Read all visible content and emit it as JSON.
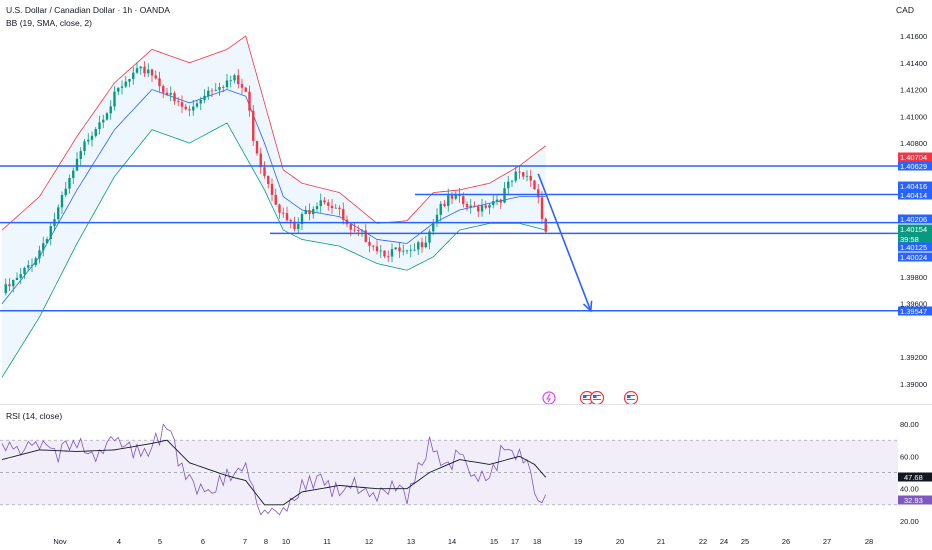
{
  "header": {
    "symbol_line": "U.S. Dollar / Canadian Dollar · 1h · OANDA",
    "bb_label": "BB (19, SMA, close, 2)",
    "currency": "CAD"
  },
  "rsi_panel": {
    "label": "RSI (14, close)"
  },
  "chart_data": [
    {
      "type": "candlestick",
      "title": "U.S. Dollar / Canadian Dollar · 1h · OANDA",
      "y_axis_ticks": [
        "1.41600",
        "1.41400",
        "1.41200",
        "1.41000",
        "1.40800",
        "1.39800",
        "1.39600",
        "1.39200",
        "1.39000"
      ],
      "x_axis_ticks": [
        "Nov",
        "4",
        "5",
        "6",
        "7",
        "8",
        "10",
        "11",
        "12",
        "13",
        "14",
        "15",
        "17",
        "18",
        "19",
        "20",
        "21",
        "22",
        "24",
        "25",
        "26",
        "27",
        "28"
      ],
      "ylim": [
        1.3885,
        1.4172
      ],
      "price_path": [
        [
          0,
          1.3968
        ],
        [
          5,
          1.398
        ],
        [
          10,
          1.4
        ],
        [
          15,
          1.403
        ],
        [
          19,
          1.4058
        ],
        [
          23,
          1.4085
        ],
        [
          27,
          1.4102
        ],
        [
          31,
          1.4118
        ],
        [
          35,
          1.413
        ],
        [
          39,
          1.4136
        ],
        [
          42,
          1.4125
        ],
        [
          46,
          1.411
        ],
        [
          50,
          1.4103
        ],
        [
          54,
          1.4118
        ],
        [
          58,
          1.4125
        ],
        [
          62,
          1.4127
        ],
        [
          65,
          1.4118
        ],
        [
          67,
          1.4085
        ],
        [
          69,
          1.4065
        ],
        [
          72,
          1.4045
        ],
        [
          75,
          1.4025
        ],
        [
          78,
          1.4015
        ],
        [
          81,
          1.4028
        ],
        [
          85,
          1.404
        ],
        [
          89,
          1.4032
        ],
        [
          93,
          1.4012
        ],
        [
          97,
          1.401
        ],
        [
          101,
          1.4
        ],
        [
          105,
          1.3998
        ],
        [
          109,
          1.3996
        ],
        [
          113,
          1.401
        ],
        [
          117,
          1.4035
        ],
        [
          121,
          1.4038
        ],
        [
          125,
          1.403
        ],
        [
          129,
          1.4035
        ],
        [
          133,
          1.404
        ],
        [
          137,
          1.4055
        ],
        [
          141,
          1.4053
        ],
        [
          143,
          1.404
        ],
        [
          145,
          1.4015
        ]
      ],
      "bollinger": {
        "period": 19,
        "upper": [
          [
            0,
            1.4015
          ],
          [
            10,
            1.404
          ],
          [
            20,
            1.4085
          ],
          [
            30,
            1.4125
          ],
          [
            40,
            1.415
          ],
          [
            50,
            1.414
          ],
          [
            60,
            1.415
          ],
          [
            65,
            1.416
          ],
          [
            70,
            1.411
          ],
          [
            75,
            1.406
          ],
          [
            80,
            1.405
          ],
          [
            90,
            1.4043
          ],
          [
            100,
            1.402
          ],
          [
            108,
            1.4022
          ],
          [
            115,
            1.4043
          ],
          [
            122,
            1.4045
          ],
          [
            130,
            1.405
          ],
          [
            138,
            1.4063
          ],
          [
            145,
            1.4078
          ]
        ],
        "middle": [
          [
            0,
            1.396
          ],
          [
            10,
            1.3995
          ],
          [
            20,
            1.4045
          ],
          [
            30,
            1.409
          ],
          [
            40,
            1.412
          ],
          [
            50,
            1.411
          ],
          [
            60,
            1.412
          ],
          [
            65,
            1.4115
          ],
          [
            70,
            1.408
          ],
          [
            75,
            1.404
          ],
          [
            80,
            1.403
          ],
          [
            90,
            1.4025
          ],
          [
            100,
            1.4008
          ],
          [
            108,
            1.4005
          ],
          [
            115,
            1.402
          ],
          [
            122,
            1.403
          ],
          [
            130,
            1.4035
          ],
          [
            138,
            1.404
          ],
          [
            145,
            1.404
          ]
        ],
        "lower": [
          [
            0,
            1.3905
          ],
          [
            10,
            1.395
          ],
          [
            20,
            1.4005
          ],
          [
            30,
            1.4055
          ],
          [
            40,
            1.409
          ],
          [
            50,
            1.408
          ],
          [
            60,
            1.4095
          ],
          [
            65,
            1.407
          ],
          [
            70,
            1.4045
          ],
          [
            75,
            1.4015
          ],
          [
            80,
            1.4008
          ],
          [
            90,
            1.4003
          ],
          [
            100,
            1.399
          ],
          [
            108,
            1.3985
          ],
          [
            115,
            1.3995
          ],
          [
            122,
            1.4015
          ],
          [
            130,
            1.402
          ],
          [
            138,
            1.402
          ],
          [
            145,
            1.4015
          ]
        ]
      },
      "horizontal_levels": [
        1.40629,
        1.40416,
        1.40414,
        1.40206,
        1.40125,
        1.39547
      ],
      "projection_arrow": {
        "from": [
          143,
          1.4057
        ],
        "to": [
          157,
          1.39547
        ]
      },
      "price_labels": [
        {
          "text": "1.40704",
          "color": "#f23645"
        },
        {
          "text": "1.40629",
          "color": "#2962ff"
        },
        {
          "text": "1.40416",
          "color": "#2962ff"
        },
        {
          "text": "1.40414",
          "color": "#2962ff"
        },
        {
          "text": "1.40206",
          "color": "#2962ff"
        },
        {
          "text": "1.40154",
          "color": "#089981",
          "sub": "39:58"
        },
        {
          "text": "1.40125",
          "color": "#2962ff"
        },
        {
          "text": "1.40024",
          "color": "#2962ff"
        },
        {
          "text": "1.39547",
          "color": "#2962ff"
        }
      ],
      "events": [
        "flash-icon",
        "us-flag-icon",
        "us-flag-icon",
        "us-flag-icon"
      ]
    },
    {
      "type": "line",
      "title": "RSI (14, close)",
      "y_axis_ticks": [
        "80.00",
        "60.00",
        "40.00",
        "20.00"
      ],
      "ylim": [
        15,
        88
      ],
      "band": [
        30,
        70
      ],
      "midline": 50,
      "rsi": [
        [
          0,
          68
        ],
        [
          5,
          63
        ],
        [
          10,
          70
        ],
        [
          15,
          62
        ],
        [
          20,
          68
        ],
        [
          25,
          60
        ],
        [
          30,
          70
        ],
        [
          35,
          62
        ],
        [
          40,
          66
        ],
        [
          44,
          78
        ],
        [
          46,
          65
        ],
        [
          50,
          45
        ],
        [
          55,
          38
        ],
        [
          60,
          48
        ],
        [
          65,
          55
        ],
        [
          68,
          30
        ],
        [
          70,
          24
        ],
        [
          75,
          28
        ],
        [
          80,
          40
        ],
        [
          85,
          45
        ],
        [
          90,
          38
        ],
        [
          95,
          42
        ],
        [
          100,
          35
        ],
        [
          105,
          40
        ],
        [
          108,
          35
        ],
        [
          110,
          48
        ],
        [
          114,
          68
        ],
        [
          118,
          52
        ],
        [
          122,
          62
        ],
        [
          126,
          45
        ],
        [
          130,
          48
        ],
        [
          134,
          65
        ],
        [
          138,
          60
        ],
        [
          141,
          48
        ],
        [
          143,
          30
        ],
        [
          145,
          33
        ]
      ],
      "rsi_ma": [
        [
          0,
          58
        ],
        [
          10,
          64
        ],
        [
          20,
          63
        ],
        [
          30,
          64
        ],
        [
          40,
          68
        ],
        [
          44,
          70
        ],
        [
          50,
          56
        ],
        [
          60,
          48
        ],
        [
          65,
          45
        ],
        [
          70,
          30
        ],
        [
          75,
          30
        ],
        [
          80,
          38
        ],
        [
          90,
          42
        ],
        [
          100,
          40
        ],
        [
          108,
          40
        ],
        [
          114,
          50
        ],
        [
          122,
          58
        ],
        [
          130,
          55
        ],
        [
          138,
          60
        ],
        [
          142,
          55
        ],
        [
          145,
          47
        ]
      ],
      "value_labels": [
        {
          "text": "47.68",
          "color": "#131722"
        },
        {
          "text": "32.93",
          "color": "#7e57c2"
        }
      ]
    }
  ]
}
